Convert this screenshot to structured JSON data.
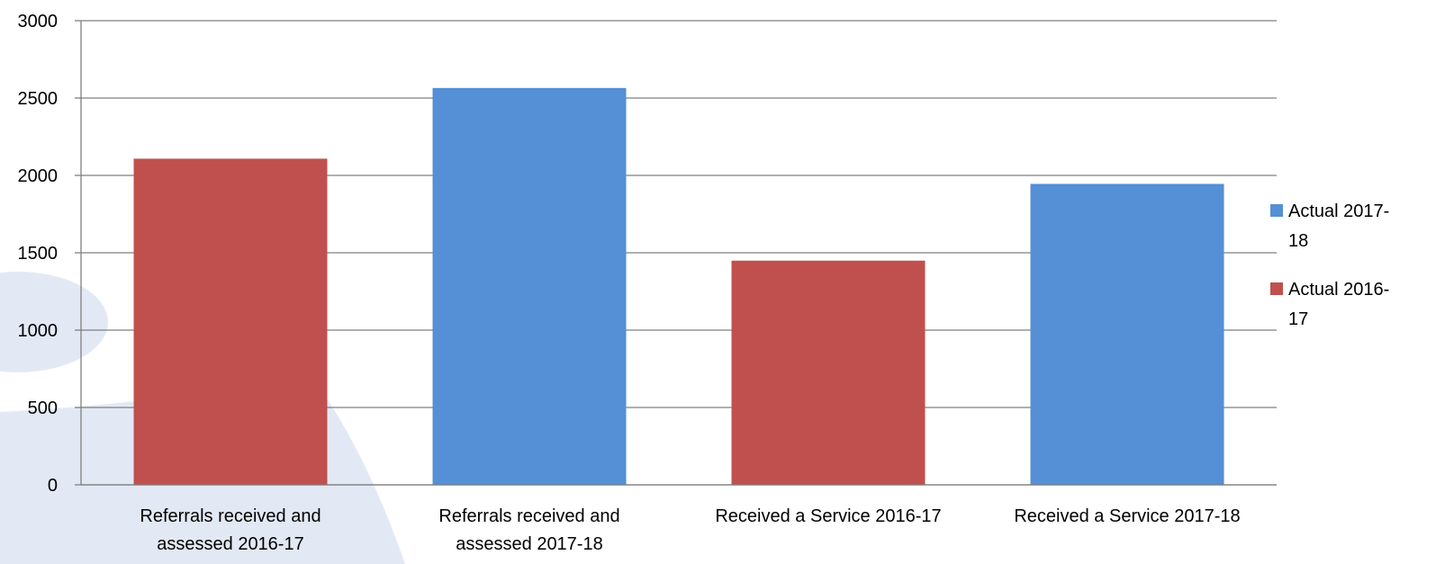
{
  "colors": {
    "background": "#ffffff",
    "gridline": "#7f7f7f",
    "axis": "#7f7f7f",
    "watermark": "#e3e9f4",
    "series_2017_18": "#558fd6",
    "series_2016_17": "#c0504d"
  },
  "chart_data": {
    "type": "bar",
    "categories": [
      "Referrals received and assessed 2016-17",
      "Referrals received and assessed 2017-18",
      "Received a Service 2016-17",
      "Received a Service 2017-18"
    ],
    "category_label_lines": [
      [
        "Referrals received and",
        "assessed 2016-17"
      ],
      [
        "Referrals received and",
        "assessed 2017-18"
      ],
      [
        "Received a Service 2016-17"
      ],
      [
        "Received a Service 2017-18"
      ]
    ],
    "series": [
      {
        "name": "Actual 2017-18",
        "legend_lines": [
          "Actual 2017-",
          "18"
        ],
        "color": "#558fd6",
        "values": [
          null,
          2565,
          null,
          1945
        ]
      },
      {
        "name": "Actual 2016-17",
        "legend_lines": [
          "Actual 2016-",
          "17"
        ],
        "color": "#c0504d",
        "values": [
          2108,
          null,
          1449,
          null
        ]
      }
    ],
    "ylim": [
      0,
      3000
    ],
    "yticks": [
      0,
      500,
      1000,
      1500,
      2000,
      2500,
      3000
    ],
    "grid": true,
    "legend_position": "right",
    "title": "",
    "xlabel": "",
    "ylabel": ""
  }
}
